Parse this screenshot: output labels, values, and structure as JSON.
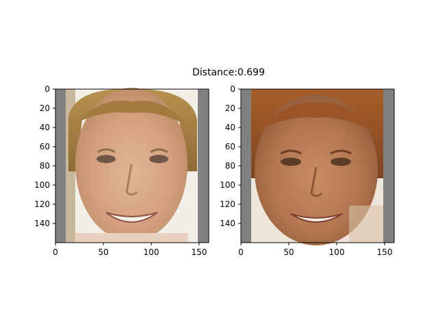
{
  "title": "Distance:0.699",
  "chart_data": [
    {
      "type": "image",
      "title": "",
      "xlim": [
        0,
        160
      ],
      "ylim": [
        160,
        0
      ],
      "xticks": [
        0,
        50,
        100,
        150
      ],
      "yticks": [
        0,
        20,
        40,
        60,
        80,
        100,
        120,
        140
      ],
      "xtick_labels": [
        "0",
        "50",
        "100",
        "150"
      ],
      "ytick_labels": [
        "0",
        "20",
        "40",
        "60",
        "80",
        "100",
        "120",
        "140"
      ],
      "image": {
        "padding_color": "#808080",
        "content_x_range": [
          11,
          149
        ],
        "description": "face photo: blond/light-brown hair, smiling, light background"
      }
    },
    {
      "type": "image",
      "title": "",
      "xlim": [
        0,
        160
      ],
      "ylim": [
        160,
        0
      ],
      "xticks": [
        0,
        50,
        100,
        150
      ],
      "yticks": [
        0,
        20,
        40,
        60,
        80,
        100,
        120,
        140
      ],
      "xtick_labels": [
        "0",
        "50",
        "100",
        "150"
      ],
      "ytick_labels": [
        "0",
        "20",
        "40",
        "60",
        "80",
        "100",
        "120",
        "140"
      ],
      "image": {
        "padding_color": "#808080",
        "content_x_range": [
          11,
          149
        ],
        "description": "face photo: reddish hair, tanned skin, smiling"
      }
    }
  ]
}
